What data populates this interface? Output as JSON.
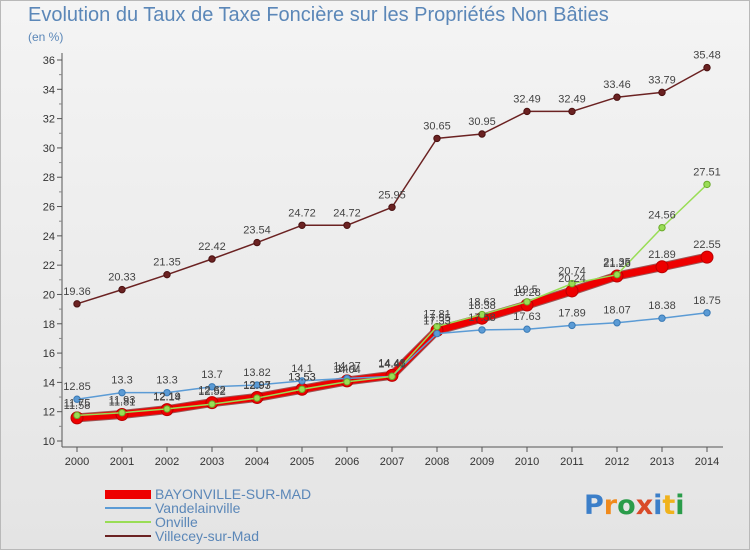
{
  "header": {
    "title": "Evolution du Taux de Taxe Foncière sur les Propriétés Non Bâties",
    "unit": "(en %)"
  },
  "logo": {
    "text": "Proxiti"
  },
  "chart_data": {
    "type": "line",
    "title": "Evolution du Taux de Taxe Foncière sur les Propriétés Non Bâties",
    "ylabel": "(en %)",
    "xlabel": "",
    "ylim": [
      10,
      36
    ],
    "yticks": [
      10,
      12,
      14,
      16,
      18,
      20,
      22,
      24,
      26,
      28,
      30,
      32,
      34,
      36
    ],
    "grid": false,
    "legend_position": "bottom-left",
    "x": [
      "2000",
      "2001",
      "2002",
      "2003",
      "2004",
      "2005",
      "2006",
      "2007",
      "2008",
      "2009",
      "2010",
      "2011",
      "2012",
      "2013",
      "2014"
    ],
    "series": [
      {
        "name": "BAYONVILLE-SUR-MAD",
        "color": "#ee0000",
        "values": [
          11.58,
          11.81,
          12.14,
          12.62,
          12.97,
          13.53,
          14.1,
          14.48,
          17.55,
          18.38,
          19.28,
          20.24,
          21.26,
          21.89,
          22.55
        ]
      },
      {
        "name": "Vandelainville",
        "color": "#5b9bd5",
        "values": [
          12.85,
          13.3,
          13.3,
          13.7,
          13.82,
          14.1,
          14.27,
          14.41,
          17.33,
          17.58,
          17.63,
          17.89,
          18.07,
          18.38,
          18.75
        ]
      },
      {
        "name": "Onville",
        "color": "#99dd55",
        "values": [
          11.75,
          11.93,
          12.19,
          12.52,
          12.93,
          13.53,
          14.04,
          14.41,
          17.81,
          18.63,
          19.5,
          20.74,
          21.35,
          24.56,
          27.51
        ]
      },
      {
        "name": "Villecey-sur-Mad",
        "color": "#6b2222",
        "values": [
          19.36,
          20.33,
          21.35,
          22.42,
          23.54,
          24.72,
          24.72,
          25.95,
          30.65,
          30.95,
          32.49,
          32.49,
          33.46,
          33.79,
          35.48
        ]
      }
    ]
  }
}
